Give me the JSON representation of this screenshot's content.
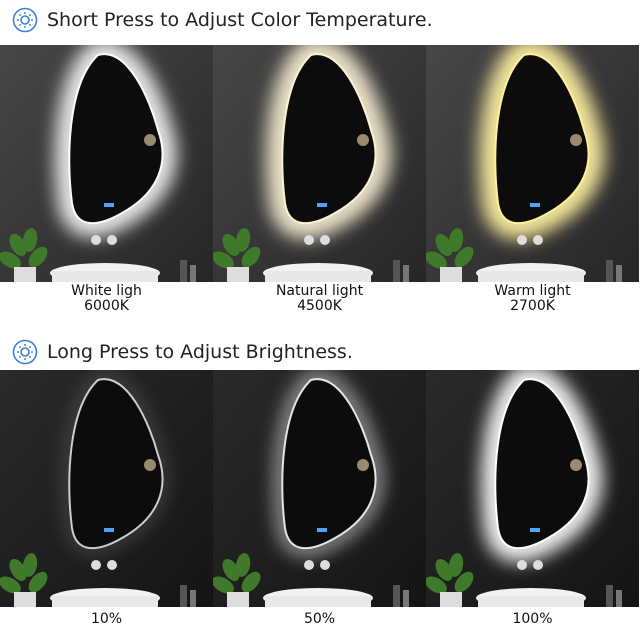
{
  "sections": [
    {
      "heading": "Short Press to Adjust Color Temperature.",
      "panels": [
        {
          "label": [
            "White ligh",
            "6000K"
          ]
        },
        {
          "label": [
            "Natural light",
            "4500K"
          ]
        },
        {
          "label": [
            "Warm light",
            "2700K"
          ]
        }
      ]
    },
    {
      "heading": "Long Press to Adjust Brightness.",
      "panels": [
        {
          "label": [
            "10%"
          ]
        },
        {
          "label": [
            "50%"
          ]
        },
        {
          "label": [
            "100%"
          ]
        }
      ]
    }
  ]
}
